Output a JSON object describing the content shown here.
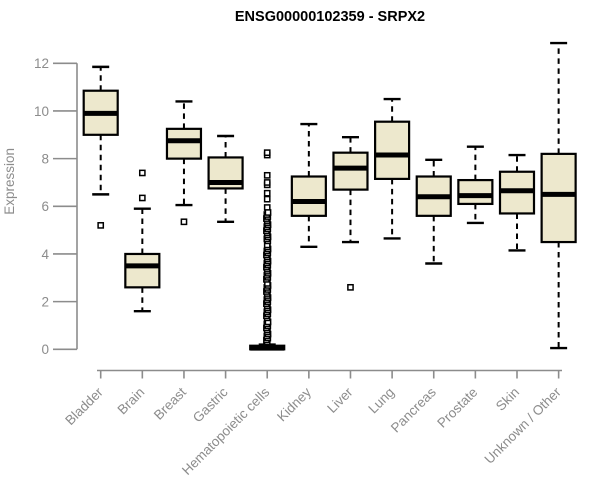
{
  "chart_data": {
    "type": "boxplot",
    "title": "ENSG00000102359 - SRPX2",
    "ylabel": "Expression",
    "xlabel": "",
    "ylim": [
      0,
      12
    ],
    "yticks": [
      0,
      2,
      4,
      6,
      8,
      10,
      12
    ],
    "grid": false,
    "legend": "none",
    "colors": {
      "box_fill": "#EDE8CD",
      "box_stroke": "#000000",
      "median": "#000000",
      "whisker": "#000000",
      "outlier": "#000000",
      "axis": "#8C8C8C",
      "tick_label": "#8C8C8C",
      "title": "#000000",
      "background": "#FFFFFF"
    },
    "categories": [
      "Bladder",
      "Brain",
      "Breast",
      "Gastric",
      "Hematopoietic cells",
      "Kidney",
      "Liver",
      "Lung",
      "Pancreas",
      "Prostate",
      "Skin",
      "Unknown / Other"
    ],
    "series": [
      {
        "category": "Bladder",
        "low": 6.5,
        "q1": 9.0,
        "median": 9.9,
        "q3": 10.85,
        "high": 11.85,
        "outliers": [
          5.2
        ]
      },
      {
        "category": "Brain",
        "low": 1.6,
        "q1": 2.6,
        "median": 3.5,
        "q3": 4.0,
        "high": 5.9,
        "outliers": [
          6.35,
          7.4
        ]
      },
      {
        "category": "Breast",
        "low": 6.05,
        "q1": 8.0,
        "median": 8.75,
        "q3": 9.25,
        "high": 10.4,
        "outliers": [
          5.35
        ]
      },
      {
        "category": "Gastric",
        "low": 5.35,
        "q1": 6.75,
        "median": 7.0,
        "q3": 8.05,
        "high": 8.95,
        "outliers": []
      },
      {
        "category": "Hematopoietic cells",
        "low": 0.0,
        "q1": 0.0,
        "median": 0.05,
        "q3": 0.15,
        "high": 0.2,
        "outliers": [
          5.95,
          6.3,
          6.55,
          6.9,
          7.0,
          7.3,
          8.15,
          8.25
        ],
        "outlier_band": {
          "from": 0.3,
          "to": 5.75,
          "step": 0.085
        }
      },
      {
        "category": "Kidney",
        "low": 4.3,
        "q1": 5.6,
        "median": 6.2,
        "q3": 7.25,
        "high": 9.45,
        "outliers": []
      },
      {
        "category": "Liver",
        "low": 4.5,
        "q1": 6.7,
        "median": 7.6,
        "q3": 8.25,
        "high": 8.9,
        "outliers": [
          2.6
        ]
      },
      {
        "category": "Lung",
        "low": 4.65,
        "q1": 7.15,
        "median": 8.15,
        "q3": 9.55,
        "high": 10.5,
        "outliers": []
      },
      {
        "category": "Pancreas",
        "low": 3.6,
        "q1": 5.6,
        "median": 6.4,
        "q3": 7.25,
        "high": 7.95,
        "outliers": []
      },
      {
        "category": "Prostate",
        "low": 5.3,
        "q1": 6.1,
        "median": 6.45,
        "q3": 7.1,
        "high": 8.5,
        "outliers": []
      },
      {
        "category": "Skin",
        "low": 4.15,
        "q1": 5.7,
        "median": 6.65,
        "q3": 7.45,
        "high": 8.15,
        "outliers": []
      },
      {
        "category": "Unknown / Other",
        "low": 0.05,
        "q1": 4.5,
        "median": 6.5,
        "q3": 8.2,
        "high": 12.85,
        "outliers": []
      }
    ]
  }
}
